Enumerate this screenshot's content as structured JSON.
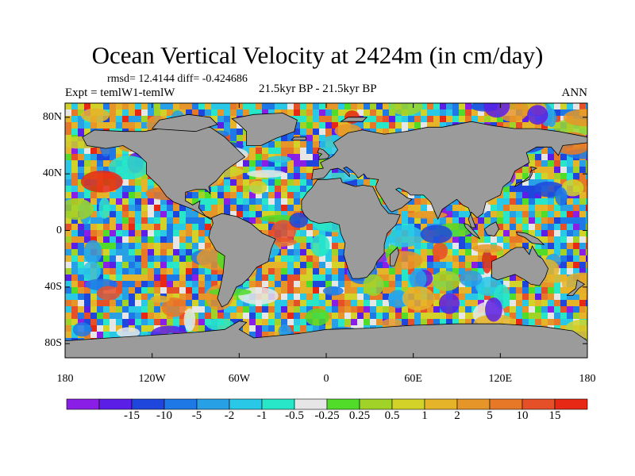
{
  "header": {
    "title": "Ocean Vertical Velocity at 2424m (in cm/day)",
    "stats": "rmsd= 12.4144 diff= -0.424686",
    "experiment": "Expt = temlW1-temlW",
    "period": "21.5kyr BP - 21.5kyr BP",
    "season": "ANN"
  },
  "map": {
    "projection": "cylindrical equidistant",
    "lon_range": [
      -180,
      180
    ],
    "lat_range": [
      -90,
      90
    ],
    "land_color": "#9b9b9b",
    "coast_color": "#000000",
    "lat_ticks": [
      {
        "value": 80,
        "label": "80N"
      },
      {
        "value": 40,
        "label": "40N"
      },
      {
        "value": 0,
        "label": "0"
      },
      {
        "value": -40,
        "label": "40S"
      },
      {
        "value": -80,
        "label": "80S"
      }
    ],
    "lon_ticks": [
      {
        "value": -180,
        "label": "180"
      },
      {
        "value": -120,
        "label": "120W"
      },
      {
        "value": -60,
        "label": "60W"
      },
      {
        "value": 0,
        "label": "0"
      },
      {
        "value": 60,
        "label": "60E"
      },
      {
        "value": 120,
        "label": "120E"
      },
      {
        "value": 180,
        "label": "180"
      }
    ]
  },
  "colorbar": {
    "colors": [
      "#8a1ee6",
      "#5a1ee6",
      "#1e46dc",
      "#1e78e6",
      "#28a0e6",
      "#28c8e6",
      "#28e6c8",
      "#e6e6e6",
      "#50dc28",
      "#a0d228",
      "#d2d228",
      "#e6b428",
      "#e69628",
      "#e67828",
      "#e65028",
      "#e62814"
    ],
    "labels": [
      "-15",
      "-10",
      "-5",
      "-2",
      "-1",
      "-0.5",
      "-0.25",
      "0.25",
      "0.5",
      "1",
      "2",
      "5",
      "10",
      "15"
    ]
  }
}
